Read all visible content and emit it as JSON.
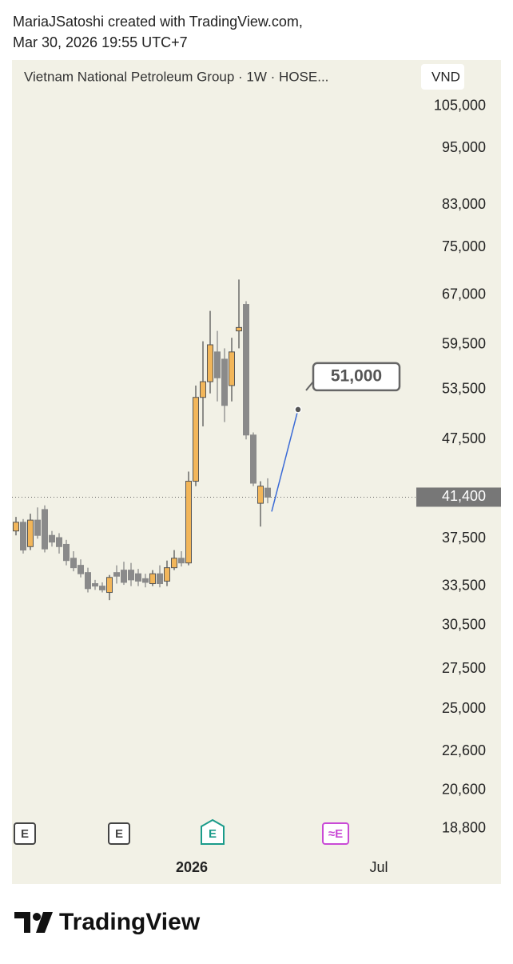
{
  "header": {
    "author_line": "MariaJSatoshi created with TradingView.com,",
    "timestamp": "Mar 30, 2026 19:55 UTC+7"
  },
  "chart_data": {
    "type": "candlestick",
    "title": "Vietnam National Petroleum Group · 1W · HOSE...",
    "currency": "VND",
    "log_scale": true,
    "ylim": [
      17960,
      117200
    ],
    "yticks": [
      {
        "value": 105000,
        "label": "105,000"
      },
      {
        "value": 95000,
        "label": "95,000"
      },
      {
        "value": 83000,
        "label": "83,000"
      },
      {
        "value": 75000,
        "label": "75,000"
      },
      {
        "value": 67000,
        "label": "67,000"
      },
      {
        "value": 59500,
        "label": "59,500"
      },
      {
        "value": 53500,
        "label": "53,500"
      },
      {
        "value": 47500,
        "label": "47,500"
      },
      {
        "value": 37500,
        "label": "37,500"
      },
      {
        "value": 33500,
        "label": "33,500"
      },
      {
        "value": 30500,
        "label": "30,500"
      },
      {
        "value": 27500,
        "label": "27,500"
      },
      {
        "value": 25000,
        "label": "25,000"
      },
      {
        "value": 22600,
        "label": "22,600"
      },
      {
        "value": 20600,
        "label": "20,600"
      },
      {
        "value": 18800,
        "label": "18,800"
      }
    ],
    "categories": [
      null,
      null,
      null,
      null,
      null,
      null,
      null,
      null,
      null,
      null,
      null,
      null,
      null,
      null,
      null,
      null,
      null,
      null,
      null,
      null,
      null,
      null,
      null,
      null,
      "2026",
      null,
      null,
      null,
      null,
      null,
      null,
      null,
      null,
      null,
      null,
      null,
      null,
      null,
      null,
      null,
      null,
      null,
      null,
      null,
      null,
      null,
      null,
      null,
      null,
      null,
      "Jul",
      null,
      null,
      null,
      null,
      null
    ],
    "open": [
      38200,
      39000,
      36800,
      39200,
      40200,
      37800,
      37600,
      37000,
      35800,
      35200,
      34600,
      33700,
      33500,
      33000,
      34600,
      34800,
      34800,
      34500,
      34100,
      33700,
      34500,
      33900,
      35000,
      35800,
      35400,
      43000,
      52500,
      54500,
      58500,
      57500,
      54000,
      61500,
      65500,
      48000,
      40800,
      42300,
      null,
      null,
      null,
      null,
      null,
      null,
      null,
      null,
      null,
      null,
      null,
      null,
      null,
      null,
      null,
      null,
      null,
      null,
      null,
      null
    ],
    "high": [
      39500,
      39300,
      39800,
      40400,
      40600,
      38200,
      38000,
      37400,
      36400,
      35700,
      35000,
      34000,
      33800,
      34400,
      35200,
      35500,
      35400,
      34900,
      34500,
      34800,
      35200,
      35600,
      36500,
      36400,
      44000,
      54000,
      60000,
      64500,
      61500,
      59000,
      60500,
      69500,
      66000,
      48300,
      43000,
      43300,
      null,
      null,
      null,
      null,
      null,
      null,
      null,
      null,
      null,
      null,
      null,
      null,
      null,
      null,
      null,
      null,
      null,
      null,
      null,
      null
    ],
    "low": [
      37800,
      36200,
      36500,
      37500,
      36300,
      36800,
      36200,
      35200,
      34700,
      34200,
      33000,
      33200,
      33000,
      32400,
      33700,
      33600,
      33500,
      33500,
      33400,
      33500,
      33400,
      33500,
      34800,
      35100,
      35200,
      42500,
      49000,
      53000,
      52000,
      49500,
      52000,
      59000,
      47500,
      42500,
      38600,
      40800,
      null,
      null,
      null,
      null,
      null,
      null,
      null,
      null,
      null,
      null,
      null,
      null,
      null,
      null,
      null,
      null,
      null,
      null,
      null,
      null
    ],
    "close": [
      39000,
      36500,
      39200,
      37800,
      36600,
      37200,
      36800,
      35600,
      35000,
      34500,
      33300,
      33500,
      33200,
      34200,
      34300,
      33800,
      34000,
      33900,
      33800,
      34500,
      33700,
      35000,
      35800,
      35400,
      43000,
      52500,
      54500,
      59500,
      55000,
      51500,
      58500,
      62000,
      48000,
      42800,
      42500,
      41400,
      null,
      null,
      null,
      null,
      null,
      null,
      null,
      null,
      null,
      null,
      null,
      null,
      null,
      null,
      null,
      null,
      null,
      null,
      null,
      null
    ],
    "up_color": "#f2b65a",
    "down_color": "#8a8a8a",
    "last_price": {
      "value": 41400,
      "label": "41,400"
    },
    "last_price_color": "#777777",
    "annotations": [
      {
        "value": 51000,
        "label": "51,000",
        "color": "#3a6ad6"
      }
    ],
    "events": [
      "E",
      "E",
      "E",
      "≈E"
    ]
  },
  "footer": {
    "brand": "TradingView"
  }
}
